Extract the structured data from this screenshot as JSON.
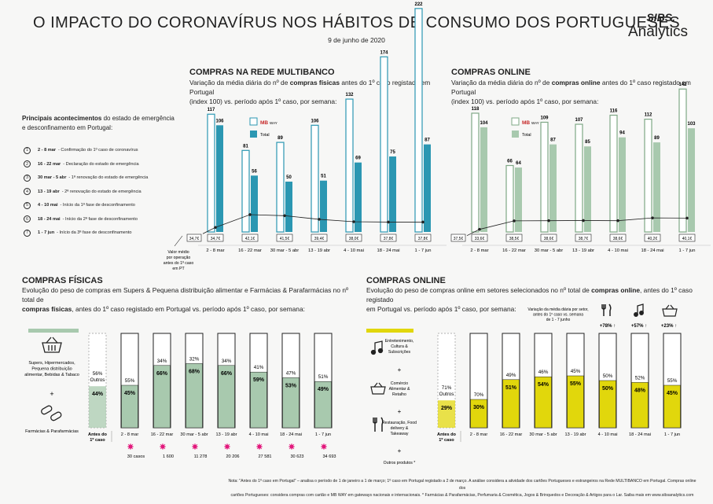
{
  "header": {
    "title": "O IMPACTO DO CORONAVÍRUS NOS HÁBITOS DE CONSUMO DOS PORTUGUESES",
    "date": "9 de junho de 2020",
    "logo_top": "SIBS.",
    "logo_bottom": "Analytics"
  },
  "events": {
    "title_pre": "Principais ",
    "title_bold": "acontecimentos",
    "title_post": " do estado de emergência e desconfinamento em Portugal:",
    "items": [
      {
        "n": "1",
        "bold": "2 - 8 mar",
        "text": "- Confirmação do 1º caso de coronavírus"
      },
      {
        "n": "2",
        "bold": "16 - 22 mar",
        "text": "- Declaração do estado de emergência"
      },
      {
        "n": "3",
        "bold": "30 mar - 5 abr",
        "text": "- 1ª renovação do estado de emergência"
      },
      {
        "n": "4",
        "bold": "13 - 19 abr",
        "text": "- 2ª renovação do estado de emergência"
      },
      {
        "n": "5",
        "bold": "4 - 10 mai",
        "text": "- Início da 1ª fase de desconfinamento"
      },
      {
        "n": "6",
        "bold": "18 - 24 mai",
        "text": "- Início da 2ª fase de desconfinamento"
      },
      {
        "n": "7",
        "bold": "1 - 7 jun",
        "text": "- Início da 3ª fase de desconfinamento"
      }
    ]
  },
  "multibanco": {
    "title": "COMPRAS NA REDE MULTIBANCO",
    "sub1": "Variação da média diária do nº de ",
    "sub1b": "compras físicas",
    "sub1c": " antes do 1º caso registado em Portugal",
    "sub2": "(index 100) vs. período após 1º caso, por semana:"
  },
  "online_top": {
    "title": "COMPRAS ONLINE",
    "sub1": "Variação da média diária do nº de ",
    "sub1b": "compras online",
    "sub1c": " antes do 1º caso registado em Portugal",
    "sub2": "(index 100) vs. período após 1º caso, por semana:"
  },
  "legend": {
    "mbway_logo": "MB",
    "mbway_txt": "WAY",
    "total": "Total"
  },
  "avg_note": [
    "Valor médio",
    "por operação",
    "antes do 1º caso",
    "em PT"
  ],
  "fisicas": {
    "title": "COMPRAS FÍSICAS",
    "sub1": "Evolução do peso de compras em Supers & Pequena distribuição alimentar e Farmácias & Parafarmácias no nº total de",
    "sub2b": "compras físicas",
    "sub2": ", antes do 1º caso registado em Portugal vs. período após 1º caso, por semana:",
    "cat1": [
      "Supers, Hipermercados,",
      "Pequena distribuição",
      "alimentar, Bebidas & Tabaco"
    ],
    "cat2": "Farmácias & Parafarmácias",
    "plus": "+"
  },
  "online_bottom": {
    "title": "COMPRAS ONLINE",
    "sub1": "Evolução do peso de compras online em setores selecionados no nº total de ",
    "sub1b": "compras online",
    "sub1c": ", antes do 1º caso registado",
    "sub2": "em Portugal vs. período após 1º caso, por semana:",
    "cat1": [
      "Entretenimento,",
      "Cultura &",
      "Subscrições"
    ],
    "cat2": [
      "Comércio",
      "Alimentar &",
      "Retalho"
    ],
    "cat3": [
      "Restauração, Food",
      "delivery &",
      "Takeaway"
    ],
    "cat4": "Outros produtos",
    "plus": "+",
    "var_note": [
      "Variação da média diária por setor,",
      "antes do 1º caso vs. semana",
      "de 1 - 7 junho"
    ],
    "var": [
      "+78% ↑",
      "+57% ↑",
      "+23% ↑"
    ]
  },
  "cases": [
    "30 casos",
    "1 600",
    "11 278",
    "20 206",
    "27 581",
    "30 623",
    "34 693"
  ],
  "note": {
    "line1": "Nota: \"Antes do 1º caso em Portugal\" – analisa o período de 1 de janeiro a 1 de março; 1º caso em Portugal registado a 2 de março. A análise considera a atividade dos cartões Portugueses e estrangeiros na Rede MULTIBANCO em Portugal. Compras online dos",
    "line2": "cartões Portugueses: considera compras com cartão e MB WAY em gateways nacionais e internacionais. * Farmácias & Parafarmácias, Perfumaria & Cosmética, Jogos & Brinquedos e Decoração & Artigos para o Lar. Saiba mais em www.sibsanalytics.com"
  },
  "colors": {
    "teal": "#2b97b2",
    "green": "#a8c9ae",
    "yellow": "#e1d70c",
    "pink": "#e2197c"
  },
  "chart_data": [
    {
      "type": "bar",
      "title": "COMPRAS NA REDE MULTIBANCO",
      "categories": [
        "2 - 8 mar",
        "16 - 22 mar",
        "30 mar - 5 abr",
        "13 - 19 abr",
        "4 - 10 mai",
        "18 - 24 mai",
        "1 - 7 jun"
      ],
      "series": [
        {
          "name": "MB WAY",
          "values": [
            117,
            81,
            89,
            106,
            132,
            174,
            222
          ]
        },
        {
          "name": "Total",
          "values": [
            106,
            56,
            50,
            51,
            69,
            75,
            87
          ]
        }
      ],
      "line": {
        "name": "Valor médio por operação",
        "labels": [
          "34,7€",
          "42,1€",
          "41,5€",
          "39,4€",
          "38,0€",
          "37,8€",
          "37,8€"
        ],
        "values": [
          34.7,
          42.1,
          41.5,
          39.4,
          38.0,
          37.8,
          37.8
        ],
        "base": "34,7€"
      }
    },
    {
      "type": "bar",
      "title": "COMPRAS ONLINE",
      "categories": [
        "2 - 8 mar",
        "16 - 22 mar",
        "30 mar - 5 abr",
        "13 - 19 abr",
        "4 - 10 mai",
        "18 - 24 mai",
        "1 - 7 jun"
      ],
      "series": [
        {
          "name": "MB WAY",
          "values": [
            118,
            66,
            109,
            107,
            116,
            112,
            142
          ]
        },
        {
          "name": "Total",
          "values": [
            104,
            64,
            87,
            85,
            94,
            89,
            103
          ]
        }
      ],
      "line": {
        "name": "Valor médio por operação",
        "labels": [
          "33,6€",
          "38,5€",
          "38,6€",
          "38,7€",
          "38,6€",
          "40,2€",
          "40,1€"
        ],
        "values": [
          33.6,
          38.5,
          38.6,
          38.7,
          38.6,
          40.2,
          40.1
        ],
        "base": "37,5€"
      }
    },
    {
      "type": "bar",
      "title": "COMPRAS FÍSICAS",
      "categories": [
        "Antes do 1º caso",
        "2 - 8 mar",
        "16 - 22 mar",
        "30 mar - 5 abr",
        "13 - 19 abr",
        "4 - 10 mai",
        "18 - 24 mai",
        "1 - 7 jun"
      ],
      "series": [
        {
          "name": "Supers & Farmácias",
          "values": [
            44,
            45,
            66,
            68,
            66,
            59,
            53,
            49
          ]
        },
        {
          "name": "Outros",
          "values": [
            56,
            55,
            34,
            32,
            34,
            41,
            47,
            51
          ]
        }
      ],
      "cat_labels": [
        "Antes do",
        "1º caso"
      ]
    },
    {
      "type": "bar",
      "title": "COMPRAS ONLINE",
      "categories": [
        "Antes do 1º caso",
        "2 - 8 mar",
        "16 - 22 mar",
        "30 mar - 5 abr",
        "13 - 19 abr",
        "4 - 10 mai",
        "18 - 24 mai",
        "1 - 7 jun"
      ],
      "series": [
        {
          "name": "Setores selecionados",
          "values": [
            29,
            30,
            51,
            54,
            55,
            50,
            48,
            45
          ]
        },
        {
          "name": "Outros",
          "values": [
            71,
            70,
            49,
            46,
            45,
            50,
            52,
            55
          ]
        }
      ]
    }
  ],
  "outros_label": "Outros"
}
